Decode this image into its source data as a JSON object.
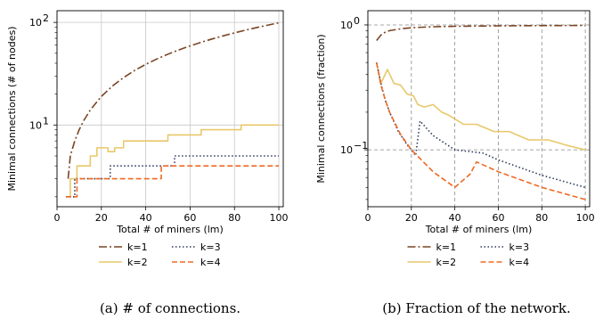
{
  "chart_data": [
    {
      "type": "line",
      "xlabel": "Total # of miners (lm)",
      "ylabel": "Minimal connections (# of nodes)",
      "yscale": "log",
      "xlim": [
        0,
        102
      ],
      "ylim": [
        1.6,
        130
      ],
      "xticks": [
        "0",
        "20",
        "40",
        "60",
        "80",
        "100"
      ],
      "yticks": [
        {
          "value": 10,
          "base": "10",
          "exp": "1"
        },
        {
          "value": 100,
          "base": "10",
          "exp": "2"
        }
      ],
      "grid": "solid",
      "caption": "(a) # of connections.",
      "series": [
        {
          "name": "k=1",
          "color": "#7a4423",
          "dash": "9,3,2,3",
          "width": 1.6,
          "x": [
            5,
            6,
            8,
            10,
            12,
            15,
            20,
            25,
            30,
            35,
            40,
            45,
            50,
            55,
            60,
            65,
            70,
            75,
            80,
            85,
            90,
            95,
            100
          ],
          "y": [
            3,
            5,
            7,
            9,
            11,
            14,
            19,
            24,
            29,
            34,
            39,
            44,
            49,
            54,
            59,
            64,
            69,
            74,
            79,
            84,
            89,
            94,
            99
          ]
        },
        {
          "name": "k=2",
          "color": "#e8c86a",
          "dash": "",
          "width": 1.6,
          "x": [
            4,
            6,
            6,
            9,
            9,
            15,
            15,
            18,
            18,
            23,
            23,
            26,
            26,
            30,
            30,
            37,
            37,
            50,
            50,
            65,
            65,
            83,
            83,
            100
          ],
          "y": [
            2,
            2,
            3,
            3,
            4,
            4,
            5,
            5,
            6,
            6,
            5.5,
            5.5,
            6,
            6,
            7,
            7,
            7,
            7,
            8,
            8,
            9,
            9,
            10,
            10
          ]
        },
        {
          "name": "k=3",
          "color": "#2e3a5c",
          "dash": "1.5,2.5",
          "width": 1.6,
          "x": [
            4,
            8,
            8,
            22,
            22,
            24,
            24,
            53,
            53,
            100
          ],
          "y": [
            2,
            2,
            3,
            3,
            3,
            3,
            4,
            4,
            5,
            5
          ]
        },
        {
          "name": "k=4",
          "color": "#ef6a24",
          "dash": "6,3",
          "width": 1.6,
          "x": [
            4,
            9,
            9,
            47,
            47,
            100
          ],
          "y": [
            2,
            2,
            3,
            3,
            4,
            4
          ]
        }
      ]
    },
    {
      "type": "line",
      "xlabel": "Total # of miners (lm)",
      "ylabel": "Minimal connections (fraction)",
      "yscale": "log",
      "xlim": [
        0,
        102
      ],
      "ylim": [
        0.035,
        1.3
      ],
      "xticks": [
        "0",
        "20",
        "40",
        "60",
        "80",
        "100"
      ],
      "yticks": [
        {
          "value": 0.1,
          "base": "10",
          "exp": "−1"
        },
        {
          "value": 1,
          "base": "10",
          "exp": "0"
        }
      ],
      "grid": "dashed",
      "caption": "(b) Fraction of the network.",
      "series": [
        {
          "name": "k=1",
          "color": "#7a4423",
          "dash": "9,3,2,3",
          "width": 1.6,
          "x": [
            4,
            6,
            8,
            10,
            15,
            20,
            30,
            40,
            60,
            80,
            100
          ],
          "y": [
            0.75,
            0.83,
            0.875,
            0.9,
            0.93,
            0.95,
            0.967,
            0.975,
            0.983,
            0.988,
            0.99
          ]
        },
        {
          "name": "k=2",
          "color": "#e8c86a",
          "dash": "",
          "width": 1.6,
          "x": [
            4,
            6,
            9,
            12,
            15,
            18,
            21,
            23,
            26,
            30,
            34,
            37,
            44,
            50,
            58,
            65,
            74,
            83,
            92,
            100
          ],
          "y": [
            0.5,
            0.34,
            0.44,
            0.34,
            0.33,
            0.28,
            0.27,
            0.23,
            0.22,
            0.23,
            0.2,
            0.19,
            0.16,
            0.16,
            0.14,
            0.14,
            0.12,
            0.12,
            0.108,
            0.1
          ]
        },
        {
          "name": "k=3",
          "color": "#2e3a5c",
          "dash": "1.5,2.5",
          "width": 1.6,
          "x": [
            4,
            6,
            8,
            10,
            14,
            18,
            22,
            24,
            30,
            40,
            53,
            60,
            80,
            100
          ],
          "y": [
            0.5,
            0.34,
            0.25,
            0.2,
            0.14,
            0.11,
            0.09,
            0.17,
            0.13,
            0.1,
            0.094,
            0.083,
            0.0625,
            0.05
          ]
        },
        {
          "name": "k=4",
          "color": "#ef6a24",
          "dash": "6,3",
          "width": 1.6,
          "x": [
            4,
            6,
            8,
            10,
            15,
            20,
            30,
            40,
            47,
            50,
            60,
            80,
            100
          ],
          "y": [
            0.5,
            0.33,
            0.25,
            0.2,
            0.133,
            0.1,
            0.0667,
            0.05,
            0.0638,
            0.08,
            0.0667,
            0.05,
            0.04
          ]
        }
      ]
    }
  ]
}
